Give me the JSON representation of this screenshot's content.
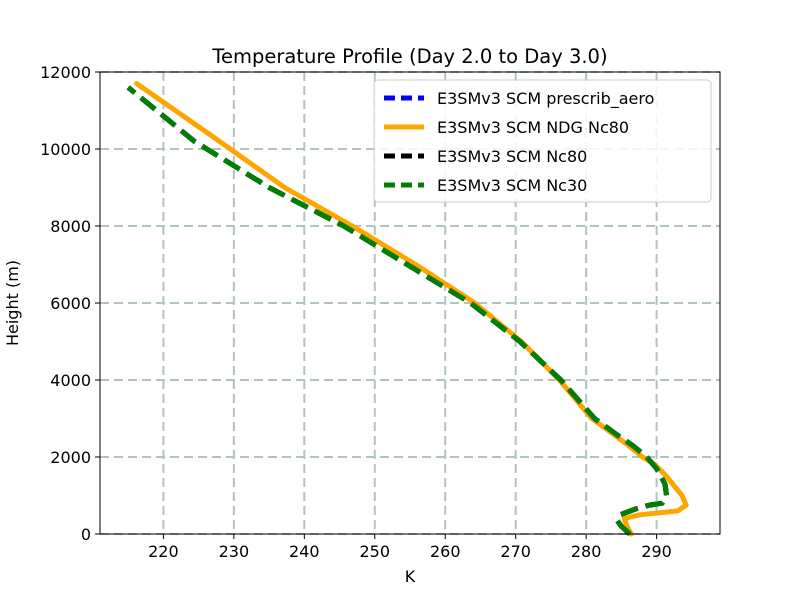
{
  "chart_data": {
    "type": "line",
    "title": "Temperature Profile (Day 2.0 to Day 3.0)",
    "xlabel": "K",
    "ylabel": "Height (m)",
    "xlim": [
      211,
      299
    ],
    "ylim": [
      0,
      12000
    ],
    "xticks": [
      220,
      230,
      240,
      250,
      260,
      270,
      280,
      290
    ],
    "yticks": [
      0,
      2000,
      4000,
      6000,
      8000,
      10000,
      12000
    ],
    "grid": true,
    "legend_position": "top-right",
    "series": [
      {
        "name": "E3SMv3 SCM prescrib_aero",
        "color": "#0000ff",
        "style": "dashed",
        "x": [
          286.2,
          285.0,
          284.4,
          284.8,
          287.0,
          289.0,
          290.8,
          291.4,
          291.2,
          290.0,
          288.6,
          286.6,
          284.2,
          281.2,
          276.4,
          270.6,
          263.6,
          254.6,
          245.6,
          235.0,
          224.4,
          215.0
        ],
        "y": [
          0,
          200,
          350,
          500,
          650,
          750,
          800,
          1000,
          1300,
          1700,
          2000,
          2300,
          2600,
          3000,
          4000,
          5000,
          6000,
          7000,
          8000,
          9000,
          10200,
          11600
        ]
      },
      {
        "name": "E3SMv3 SCM NDG Nc80",
        "color": "#ffa500",
        "style": "solid",
        "x": [
          286.4,
          285.8,
          285.4,
          287.6,
          290.4,
          293.0,
          294.2,
          293.6,
          291.4,
          289.8,
          288.0,
          286.0,
          283.8,
          280.8,
          276.2,
          270.8,
          264.2,
          255.8,
          246.8,
          237.2,
          226.4,
          216.2
        ],
        "y": [
          0,
          200,
          400,
          500,
          550,
          600,
          750,
          1000,
          1500,
          1800,
          2000,
          2300,
          2600,
          3000,
          4000,
          5000,
          6000,
          7000,
          8000,
          9000,
          10400,
          11700
        ]
      },
      {
        "name": "E3SMv3 SCM Nc80",
        "color": "#000000",
        "style": "dashed",
        "x": [
          286.2,
          285.0,
          284.4,
          284.8,
          287.0,
          289.0,
          290.8,
          291.4,
          291.2,
          290.0,
          288.6,
          286.6,
          284.2,
          281.2,
          276.4,
          270.6,
          263.6,
          254.6,
          245.6,
          235.0,
          224.4,
          215.0
        ],
        "y": [
          0,
          200,
          350,
          500,
          650,
          750,
          800,
          1000,
          1300,
          1700,
          2000,
          2300,
          2600,
          3000,
          4000,
          5000,
          6000,
          7000,
          8000,
          9000,
          10200,
          11600
        ]
      },
      {
        "name": "E3SMv3 SCM Nc30",
        "color": "#008000",
        "style": "dashed",
        "x": [
          286.2,
          285.0,
          284.4,
          284.8,
          287.0,
          289.0,
          290.8,
          291.4,
          291.2,
          290.0,
          288.6,
          286.6,
          284.2,
          281.2,
          276.4,
          270.6,
          263.6,
          254.6,
          245.6,
          235.0,
          224.4,
          215.0
        ],
        "y": [
          0,
          200,
          350,
          500,
          650,
          750,
          800,
          1000,
          1300,
          1700,
          2000,
          2300,
          2600,
          3000,
          4000,
          5000,
          6000,
          7000,
          8000,
          9000,
          10200,
          11600
        ]
      }
    ]
  }
}
